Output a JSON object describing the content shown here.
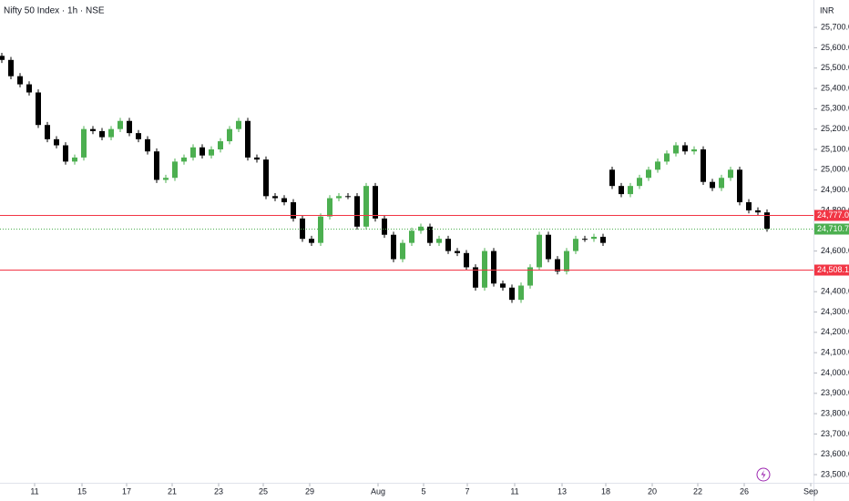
{
  "chart_data": {
    "type": "candlestick",
    "title": "Nifty 50 Index · 1h · NSE",
    "currency": "INR",
    "up_color": "#4caf50",
    "down_color": "#000000",
    "xlim": [
      -0.2,
      88.8
    ],
    "xticks": [
      {
        "value": 3.6,
        "label": "11"
      },
      {
        "value": 8.8,
        "label": "15"
      },
      {
        "value": 13.7,
        "label": "17"
      },
      {
        "value": 18.7,
        "label": "21"
      },
      {
        "value": 23.8,
        "label": "23"
      },
      {
        "value": 28.7,
        "label": "25"
      },
      {
        "value": 33.8,
        "label": "29"
      },
      {
        "value": 41.3,
        "label": "Aug"
      },
      {
        "value": 46.3,
        "label": "5"
      },
      {
        "value": 51.1,
        "label": "7"
      },
      {
        "value": 56.3,
        "label": "11"
      },
      {
        "value": 61.5,
        "label": "13"
      },
      {
        "value": 66.3,
        "label": "18"
      },
      {
        "value": 71.4,
        "label": "20"
      },
      {
        "value": 76.4,
        "label": "22"
      },
      {
        "value": 81.5,
        "label": "26"
      },
      {
        "value": 88.8,
        "label": "Sep"
      }
    ],
    "ylim": [
      23460,
      25790
    ],
    "yticks": [
      {
        "value": 23500,
        "label": "23,500.00"
      },
      {
        "value": 23600,
        "label": "23,600.00"
      },
      {
        "value": 23700,
        "label": "23,700.00"
      },
      {
        "value": 23800,
        "label": "23,800.00"
      },
      {
        "value": 23900,
        "label": "23,900.00"
      },
      {
        "value": 24000,
        "label": "24,000.00"
      },
      {
        "value": 24100,
        "label": "24,100.00"
      },
      {
        "value": 24200,
        "label": "24,200.00"
      },
      {
        "value": 24300,
        "label": "24,300.00"
      },
      {
        "value": 24400,
        "label": "24,400.00"
      },
      {
        "value": 24500,
        "label": "24,500.00"
      },
      {
        "value": 24600,
        "label": "24,600.00"
      },
      {
        "value": 24700,
        "label": "24,700.00"
      },
      {
        "value": 24800,
        "label": "24,800.00"
      },
      {
        "value": 24900,
        "label": "24,900.00"
      },
      {
        "value": 25000,
        "label": "25,000.00"
      },
      {
        "value": 25100,
        "label": "25,100.00"
      },
      {
        "value": 25200,
        "label": "25,200.00"
      },
      {
        "value": 25300,
        "label": "25,300.00"
      },
      {
        "value": 25400,
        "label": "25,400.00"
      },
      {
        "value": 25500,
        "label": "25,500.00"
      },
      {
        "value": 25600,
        "label": "25,600.00"
      },
      {
        "value": 25700,
        "label": "25,700.00"
      }
    ],
    "levels": [
      {
        "value": 24777,
        "label": "24,777.00",
        "color": "#f23645",
        "style": "solid"
      },
      {
        "value": 24710.7,
        "label": "24,710.70",
        "color": "#4caf50",
        "style": "dotted"
      },
      {
        "value": 24508.1,
        "label": "24,508.10",
        "color": "#f23645",
        "style": "solid"
      }
    ],
    "open": [
      25560,
      25540,
      25460,
      25420,
      25380,
      25220,
      25150,
      25120,
      25040,
      25060,
      25200,
      25190,
      25160,
      25200,
      25240,
      25180,
      25150,
      25090,
      24950,
      24960,
      25040,
      25060,
      25110,
      25070,
      25100,
      25140,
      25200,
      25240,
      25060,
      25050,
      24870,
      24860,
      24840,
      24760,
      24660,
      24640,
      24770,
      24860,
      24870,
      24870,
      24720,
      24920,
      24760,
      24680,
      24560,
      24640,
      24700,
      24720,
      24640,
      24660,
      24600,
      24590,
      24520,
      24420,
      24600,
      24440,
      24420,
      24360,
      24430,
      24520,
      24680,
      24560,
      24500,
      24600,
      24660,
      24660,
      24670,
      25000,
      24920,
      24880,
      24920,
      24960,
      25000,
      25040,
      25080,
      25120,
      25090,
      25100,
      24940,
      24910,
      24960,
      25000,
      24840,
      24800,
      24790
    ],
    "high": [
      25575,
      25555,
      25475,
      25435,
      25395,
      25235,
      25165,
      25135,
      25075,
      25215,
      25215,
      25205,
      25215,
      25255,
      25255,
      25195,
      25165,
      25105,
      24975,
      25055,
      25075,
      25125,
      25125,
      25115,
      25155,
      25215,
      25255,
      25255,
      25075,
      25065,
      24885,
      24875,
      24855,
      24775,
      24675,
      24785,
      24875,
      24885,
      24885,
      24885,
      24935,
      24935,
      24775,
      24695,
      24655,
      24715,
      24735,
      24735,
      24675,
      24675,
      24615,
      24605,
      24535,
      24615,
      24615,
      24455,
      24435,
      24445,
      24535,
      24695,
      24695,
      24575,
      24615,
      24675,
      24675,
      24685,
      24685,
      25015,
      24935,
      24935,
      24975,
      25015,
      25055,
      25095,
      25135,
      25135,
      25115,
      25115,
      24955,
      24975,
      25015,
      25015,
      24855,
      24815,
      24805
    ],
    "low": [
      25525,
      25445,
      25405,
      25365,
      25205,
      25135,
      25105,
      25025,
      25025,
      25045,
      25175,
      25145,
      25145,
      25185,
      25165,
      25135,
      25075,
      24935,
      24935,
      24945,
      25025,
      25045,
      25055,
      25055,
      25085,
      25125,
      25185,
      25045,
      25035,
      24855,
      24845,
      24825,
      24745,
      24645,
      24625,
      24625,
      24755,
      24845,
      24855,
      24705,
      24705,
      24745,
      24665,
      24545,
      24545,
      24625,
      24685,
      24625,
      24625,
      24585,
      24575,
      24505,
      24405,
      24405,
      24425,
      24405,
      24345,
      24345,
      24415,
      24505,
      24545,
      24485,
      24485,
      24585,
      24645,
      24645,
      24625,
      24905,
      24865,
      24865,
      24905,
      24945,
      24985,
      25025,
      25065,
      25075,
      25075,
      24925,
      24895,
      24895,
      24945,
      24825,
      24785,
      24775,
      24695
    ],
    "close": [
      25540,
      25460,
      25420,
      25380,
      25220,
      25150,
      25120,
      25040,
      25060,
      25200,
      25190,
      25160,
      25200,
      25240,
      25180,
      25150,
      25090,
      24950,
      24960,
      25040,
      25060,
      25110,
      25070,
      25100,
      25140,
      25200,
      25240,
      25060,
      25050,
      24870,
      24860,
      24840,
      24760,
      24660,
      24640,
      24770,
      24860,
      24870,
      24870,
      24720,
      24920,
      24760,
      24680,
      24560,
      24640,
      24700,
      24720,
      24640,
      24660,
      24600,
      24590,
      24520,
      24420,
      24600,
      24440,
      24420,
      24360,
      24430,
      24520,
      24680,
      24560,
      24500,
      24600,
      24660,
      24660,
      24670,
      24640,
      24920,
      24880,
      24920,
      24960,
      25000,
      25040,
      25080,
      25120,
      25090,
      25100,
      24940,
      24910,
      24960,
      25000,
      24840,
      24800,
      24790,
      24710
    ]
  }
}
